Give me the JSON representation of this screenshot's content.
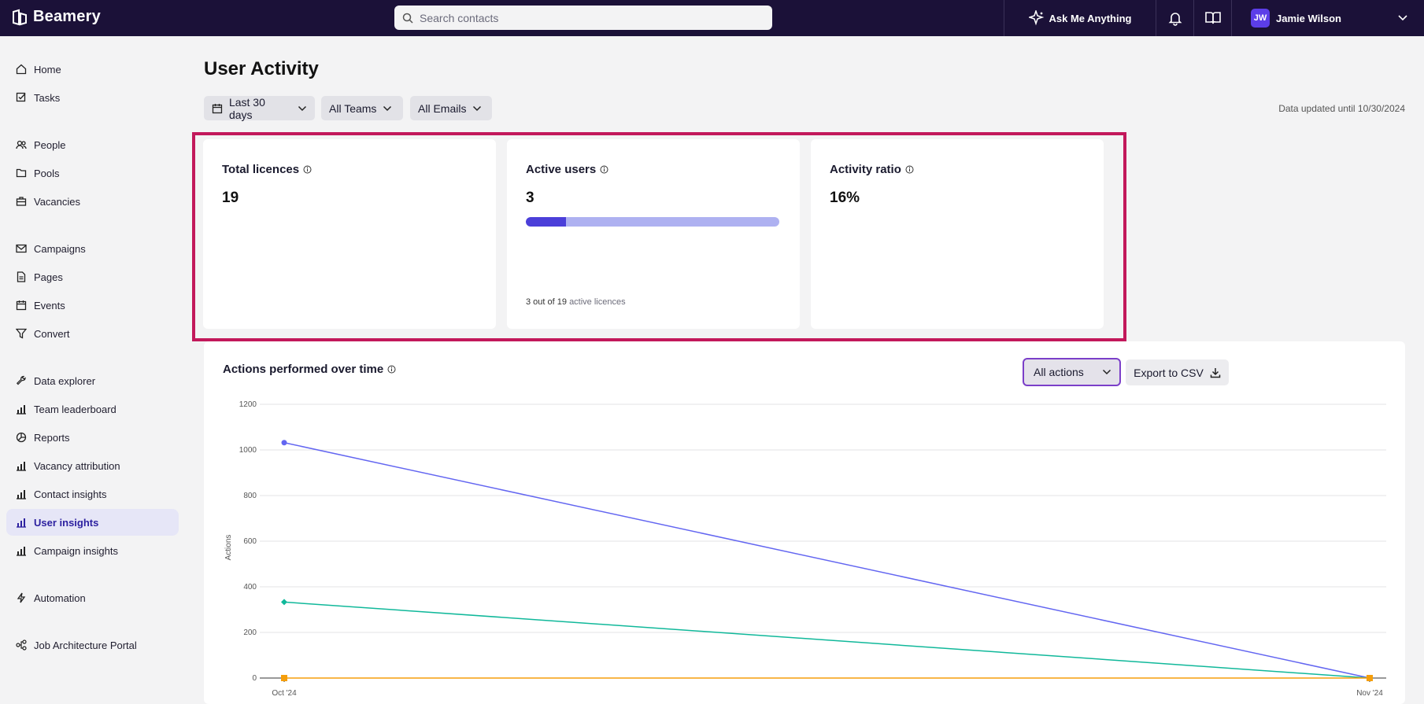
{
  "app": {
    "name": "Beamery"
  },
  "search": {
    "placeholder": "Search contacts"
  },
  "topbar": {
    "ask_label": "Ask Me Anything",
    "user_initials": "JW",
    "user_name": "Jamie Wilson"
  },
  "sidebar": {
    "items": [
      {
        "label": "Home",
        "icon": "home-icon"
      },
      {
        "label": "Tasks",
        "icon": "tasks-icon"
      },
      {
        "label": "People",
        "icon": "people-icon"
      },
      {
        "label": "Pools",
        "icon": "folder-icon"
      },
      {
        "label": "Vacancies",
        "icon": "briefcase-icon"
      },
      {
        "label": "Campaigns",
        "icon": "mail-icon"
      },
      {
        "label": "Pages",
        "icon": "page-icon"
      },
      {
        "label": "Events",
        "icon": "calendar-icon"
      },
      {
        "label": "Convert",
        "icon": "filter-icon"
      },
      {
        "label": "Data explorer",
        "icon": "wrench-icon"
      },
      {
        "label": "Team leaderboard",
        "icon": "bar-chart-icon"
      },
      {
        "label": "Reports",
        "icon": "pie-chart-icon"
      },
      {
        "label": "Vacancy attribution",
        "icon": "bar-chart-icon"
      },
      {
        "label": "Contact insights",
        "icon": "bar-chart-icon"
      },
      {
        "label": "User insights",
        "icon": "bar-chart-icon",
        "active": true
      },
      {
        "label": "Campaign insights",
        "icon": "bar-chart-icon"
      },
      {
        "label": "Automation",
        "icon": "lightning-icon"
      },
      {
        "label": "Job Architecture Portal",
        "icon": "hierarchy-icon"
      }
    ]
  },
  "main": {
    "title": "User Activity",
    "filters": {
      "date": "Last 30 days",
      "teams": "All Teams",
      "emails": "All Emails"
    },
    "updated": "Data updated until 10/30/2024",
    "cards": {
      "licences": {
        "title": "Total licences",
        "value": "19"
      },
      "active": {
        "title": "Active users",
        "value": "3",
        "progress": 0.158,
        "foot_count": "3 out of 19",
        "foot_label": "active licences"
      },
      "ratio": {
        "title": "Activity ratio",
        "value": "16%"
      }
    },
    "chart_panel": {
      "title": "Actions performed over time",
      "filter_label": "All actions",
      "export_label": "Export to CSV"
    }
  },
  "colors": {
    "accent": "#5c3ee8",
    "topbar": "#1b1138",
    "highlight": "#c2185b",
    "series_a": "#6366f1",
    "series_b": "#10b89a",
    "series_c": "#f59e0b"
  },
  "chart_data": {
    "type": "line",
    "x": [
      "Oct '24",
      "Nov '24"
    ],
    "ylabel": "Actions",
    "ylim": [
      0,
      1200
    ],
    "yticks": [
      0,
      200,
      400,
      600,
      800,
      1000,
      1200
    ],
    "grid": true,
    "series": [
      {
        "values": [
          1032,
          0
        ],
        "color": "#6366f1",
        "marker": "circle"
      },
      {
        "values": [
          333,
          0
        ],
        "color": "#10b89a",
        "marker": "diamond"
      },
      {
        "values": [
          0,
          0
        ],
        "color": "#f59e0b",
        "marker": "square"
      }
    ]
  }
}
